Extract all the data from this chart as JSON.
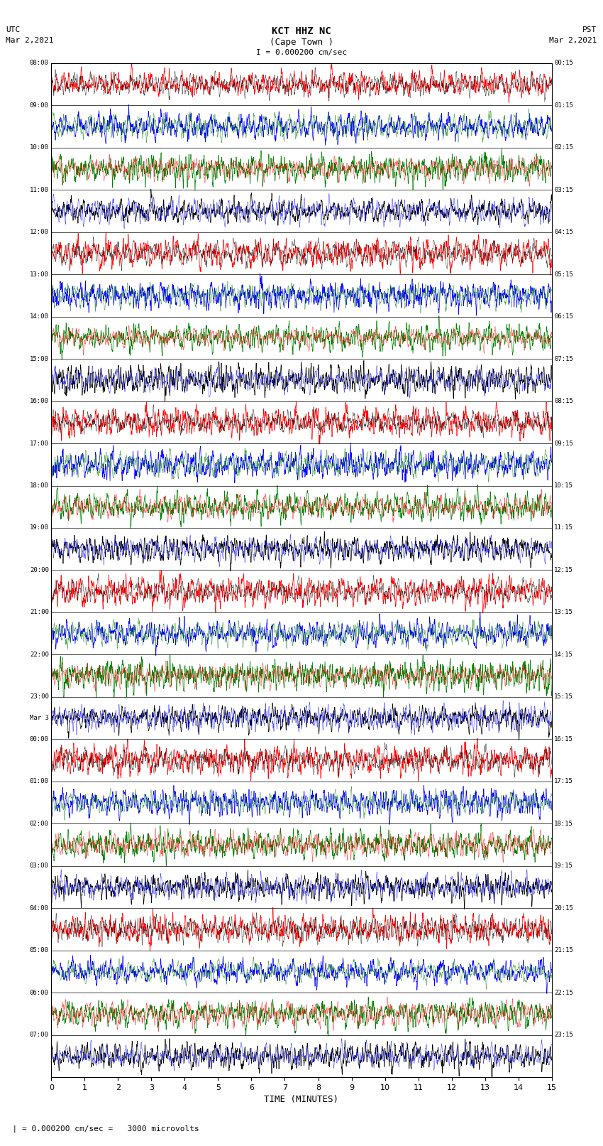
{
  "title_line1": "KCT HHZ NC",
  "title_line2": "(Cape Town )",
  "scale_text": "I = 0.000200 cm/sec",
  "left_label_top": "UTC",
  "left_label_date": "Mar 2,2021",
  "right_label_top": "PST",
  "right_label_date": "Mar 2,2021",
  "bottom_label": "TIME (MINUTES)",
  "scale_note": "  | = 0.000200 cm/sec =   3000 microvolts",
  "utc_times": [
    "08:00",
    "09:00",
    "10:00",
    "11:00",
    "12:00",
    "13:00",
    "14:00",
    "15:00",
    "16:00",
    "17:00",
    "18:00",
    "19:00",
    "20:00",
    "21:00",
    "22:00",
    "23:00",
    "Mar 3",
    "00:00",
    "01:00",
    "02:00",
    "03:00",
    "04:00",
    "05:00",
    "06:00",
    "07:00"
  ],
  "pst_times": [
    "00:15",
    "01:15",
    "02:15",
    "03:15",
    "04:15",
    "05:15",
    "06:15",
    "07:15",
    "08:15",
    "09:15",
    "10:15",
    "11:15",
    "12:15",
    "13:15",
    "14:15",
    "15:15",
    "16:15",
    "17:15",
    "18:15",
    "19:15",
    "20:15",
    "21:15",
    "22:15",
    "23:15"
  ],
  "n_rows": 24,
  "n_cols": 5400,
  "time_minutes": 15,
  "row_colors": [
    "red",
    "blue",
    "green",
    "black",
    "red",
    "blue",
    "green",
    "black",
    "red",
    "blue",
    "green",
    "black",
    "red",
    "blue",
    "green",
    "black",
    "red",
    "blue",
    "green",
    "black",
    "red",
    "blue",
    "green",
    "black"
  ],
  "secondary_colors": [
    "black",
    "green",
    "red",
    "blue",
    "black",
    "green",
    "red",
    "blue",
    "black",
    "green",
    "red",
    "blue",
    "black",
    "green",
    "red",
    "blue",
    "black",
    "green",
    "red",
    "blue",
    "black",
    "green",
    "red",
    "blue"
  ],
  "bg_color": "white",
  "fig_width": 8.5,
  "fig_height": 16.13
}
